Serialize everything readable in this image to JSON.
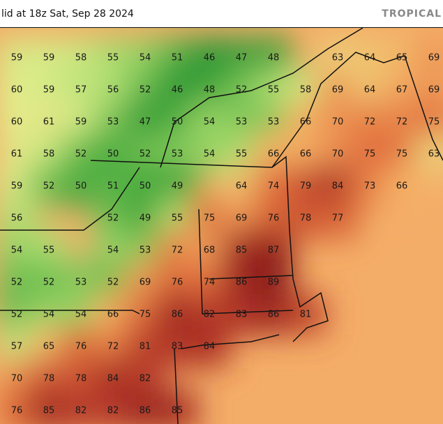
{
  "header": {
    "valid": "lid at 18z Sat, Sep 28 2024",
    "product": "TROPICAL"
  },
  "map": {
    "rows": [
      [
        59,
        59,
        58,
        55,
        54,
        51,
        46,
        47,
        48,
        null,
        63,
        64,
        65,
        69
      ],
      [
        60,
        59,
        57,
        56,
        52,
        46,
        48,
        52,
        55,
        58,
        69,
        64,
        67,
        69
      ],
      [
        60,
        61,
        59,
        53,
        47,
        50,
        54,
        53,
        53,
        66,
        70,
        72,
        72,
        75
      ],
      [
        61,
        58,
        52,
        50,
        52,
        53,
        54,
        55,
        66,
        66,
        70,
        75,
        75,
        63
      ],
      [
        59,
        52,
        50,
        51,
        50,
        49,
        null,
        64,
        74,
        79,
        84,
        73,
        66,
        null
      ],
      [
        56,
        null,
        null,
        52,
        49,
        55,
        75,
        69,
        76,
        78,
        77,
        null,
        null,
        null
      ],
      [
        54,
        55,
        null,
        54,
        53,
        72,
        68,
        85,
        87,
        null,
        null,
        null,
        null,
        null
      ],
      [
        52,
        52,
        53,
        52,
        69,
        76,
        74,
        86,
        89,
        null,
        null,
        null,
        null,
        null
      ],
      [
        52,
        54,
        54,
        66,
        75,
        86,
        82,
        83,
        86,
        81,
        null,
        null,
        null,
        null
      ],
      [
        57,
        65,
        76,
        72,
        81,
        83,
        84,
        null,
        null,
        null,
        null,
        null,
        null,
        null
      ],
      [
        70,
        78,
        78,
        84,
        82,
        null,
        null,
        null,
        null,
        null,
        null,
        null,
        null,
        null
      ],
      [
        76,
        85,
        82,
        82,
        86,
        85,
        null,
        null,
        null,
        null,
        null,
        null,
        null,
        null
      ]
    ]
  }
}
